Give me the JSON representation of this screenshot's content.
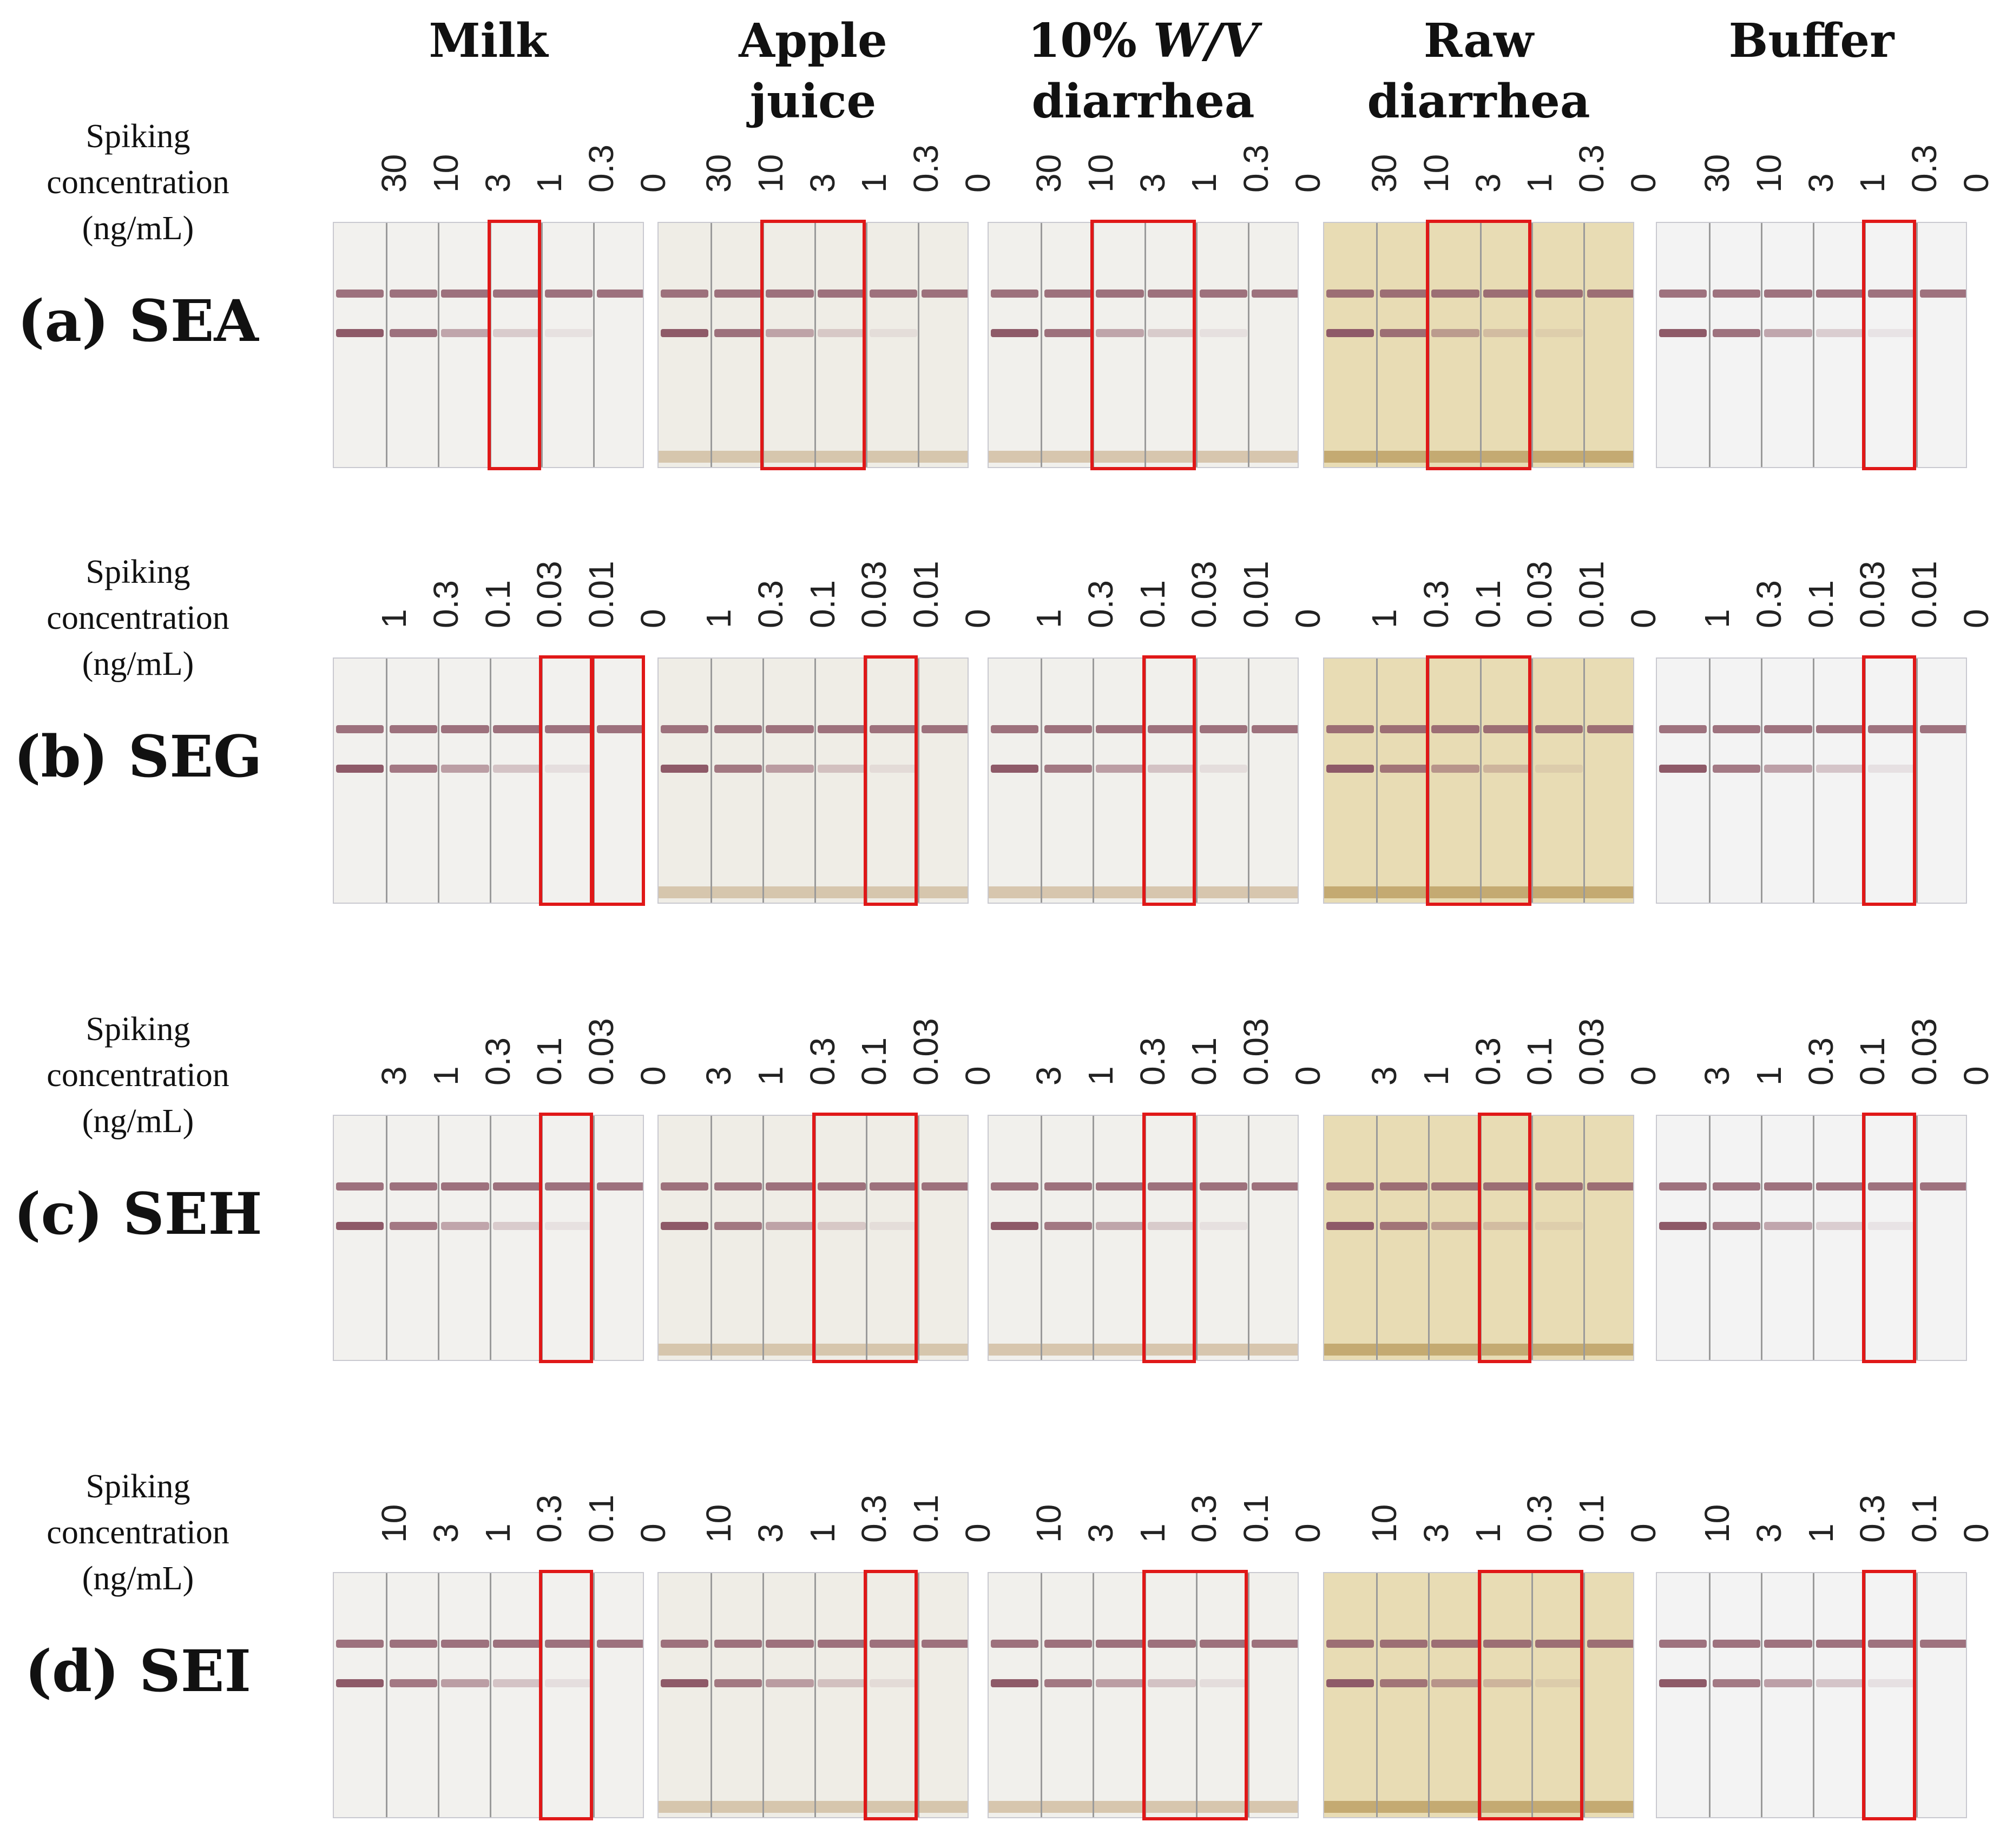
{
  "columns": [
    {
      "label": "Milk",
      "bg": "#f2f1ee"
    },
    {
      "label": "Apple juice",
      "bg": "#efede6"
    },
    {
      "label_pre": "10% ",
      "label_italic": "W/V",
      "label_post": " diarrhea",
      "bg": "#f1f0ec"
    },
    {
      "label": "Raw diarrhea",
      "bg": "#e8dcb4"
    },
    {
      "label": "Buffer",
      "bg": "#f3f3f3"
    }
  ],
  "spiking_label": "Spiking concentration (ng/mL)",
  "line_color": "#8e5a68",
  "highlight_color": "#e01818",
  "rows": [
    {
      "label": "(a) SEA",
      "concentrations": [
        "30",
        "10",
        "3",
        "1",
        "0.3",
        "0"
      ],
      "highlights": [
        [
          3,
          3
        ],
        [
          2,
          3
        ],
        [
          2,
          3
        ],
        [
          2,
          3
        ],
        [
          4,
          4
        ]
      ],
      "test_line": [
        1.0,
        0.85,
        0.5,
        0.25,
        0.1,
        0.0
      ]
    },
    {
      "label": "(b) SEG",
      "concentrations": [
        "1",
        "0.3",
        "0.1",
        "0.03",
        "0.01",
        "0"
      ],
      "highlights": [
        [
          4,
          4
        ],
        [
          4,
          4
        ],
        [
          3,
          3
        ],
        [
          2,
          3
        ],
        [
          4,
          4
        ]
      ],
      "highlights_extra": [
        [
          5,
          5
        ],
        null,
        null,
        null,
        null
      ],
      "test_line": [
        1.0,
        0.8,
        0.55,
        0.3,
        0.12,
        0.0
      ]
    },
    {
      "label": "(c) SEH",
      "concentrations": [
        "3",
        "1",
        "0.3",
        "0.1",
        "0.03",
        "0"
      ],
      "highlights": [
        [
          4,
          4
        ],
        [
          3,
          4
        ],
        [
          3,
          3
        ],
        [
          3,
          3
        ],
        [
          4,
          4
        ]
      ],
      "test_line": [
        1.0,
        0.8,
        0.5,
        0.25,
        0.1,
        0.0
      ]
    },
    {
      "label": "(d) SEI",
      "concentrations": [
        "10",
        "3",
        "1",
        "0.3",
        "0.1",
        "0"
      ],
      "highlights": [
        [
          4,
          4
        ],
        [
          4,
          4
        ],
        [
          3,
          4
        ],
        [
          3,
          4
        ],
        [
          4,
          4
        ]
      ],
      "test_line": [
        1.0,
        0.8,
        0.55,
        0.3,
        0.12,
        0.0
      ]
    }
  ]
}
